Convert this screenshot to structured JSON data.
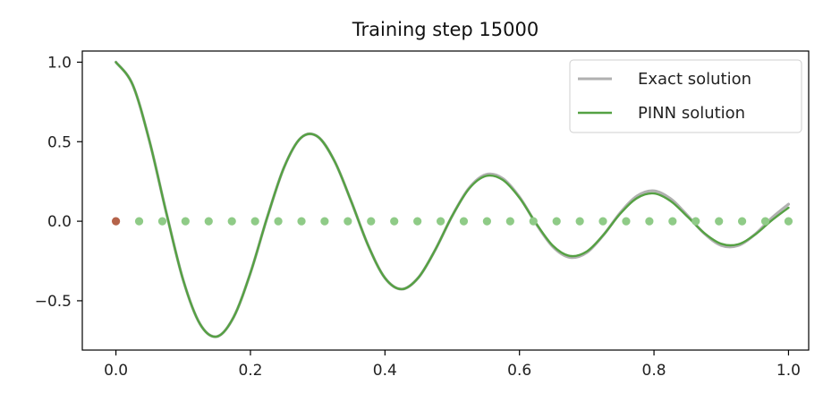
{
  "chart_data": {
    "type": "line",
    "title": "Training step 15000",
    "xlabel": "",
    "ylabel": "",
    "xlim": [
      -0.05,
      1.03
    ],
    "ylim": [
      -0.81,
      1.07
    ],
    "x_ticks": [
      0.0,
      0.2,
      0.4,
      0.6,
      0.8,
      1.0
    ],
    "x_tick_labels": [
      "0.0",
      "0.2",
      "0.4",
      "0.6",
      "0.8",
      "1.0"
    ],
    "y_ticks": [
      -0.5,
      0.0,
      0.5,
      1.0
    ],
    "y_tick_labels": [
      "−0.5",
      "0.0",
      "0.5",
      "1.0"
    ],
    "grid": false,
    "legend_position": "top-right",
    "series": [
      {
        "name": "Exact solution",
        "color": "#b0b0b0",
        "x": [
          0.0,
          0.025,
          0.05,
          0.075,
          0.1,
          0.125,
          0.15,
          0.175,
          0.2,
          0.225,
          0.25,
          0.275,
          0.3,
          0.325,
          0.35,
          0.375,
          0.4,
          0.425,
          0.45,
          0.475,
          0.5,
          0.525,
          0.55,
          0.575,
          0.6,
          0.625,
          0.65,
          0.675,
          0.7,
          0.725,
          0.75,
          0.775,
          0.8,
          0.825,
          0.85,
          0.875,
          0.9,
          0.925,
          0.95,
          0.975,
          1.0
        ],
        "y": [
          1.0,
          0.857,
          0.502,
          0.052,
          -0.37,
          -0.646,
          -0.725,
          -0.603,
          -0.325,
          0.025,
          0.339,
          0.524,
          0.532,
          0.378,
          0.123,
          -0.152,
          -0.357,
          -0.427,
          -0.353,
          -0.178,
          0.034,
          0.208,
          0.293,
          0.269,
          0.152,
          -0.018,
          -0.162,
          -0.227,
          -0.197,
          -0.086,
          0.054,
          0.159,
          0.191,
          0.14,
          0.035,
          -0.078,
          -0.152,
          -0.153,
          -0.083,
          0.02,
          0.107
        ]
      },
      {
        "name": "PINN solution",
        "color": "#55a143",
        "x": [
          0.0,
          0.025,
          0.05,
          0.075,
          0.1,
          0.125,
          0.15,
          0.175,
          0.2,
          0.225,
          0.25,
          0.275,
          0.3,
          0.325,
          0.35,
          0.375,
          0.4,
          0.425,
          0.45,
          0.475,
          0.5,
          0.525,
          0.55,
          0.575,
          0.6,
          0.625,
          0.65,
          0.675,
          0.7,
          0.725,
          0.75,
          0.775,
          0.8,
          0.825,
          0.85,
          0.875,
          0.9,
          0.925,
          0.95,
          0.975,
          1.0
        ],
        "y": [
          1.0,
          0.857,
          0.502,
          0.052,
          -0.37,
          -0.646,
          -0.725,
          -0.603,
          -0.325,
          0.025,
          0.339,
          0.524,
          0.532,
          0.378,
          0.123,
          -0.152,
          -0.357,
          -0.427,
          -0.353,
          -0.178,
          0.034,
          0.204,
          0.284,
          0.26,
          0.147,
          -0.015,
          -0.155,
          -0.218,
          -0.19,
          -0.085,
          0.048,
          0.146,
          0.175,
          0.126,
          0.028,
          -0.075,
          -0.142,
          -0.145,
          -0.085,
          0.005,
          0.085
        ]
      }
    ],
    "points": [
      {
        "color": "#8fcb87",
        "x": [
          0.0345,
          0.069,
          0.1034,
          0.1379,
          0.1724,
          0.2069,
          0.2414,
          0.2759,
          0.3103,
          0.3448,
          0.3793,
          0.4138,
          0.4483,
          0.4828,
          0.5172,
          0.5517,
          0.5862,
          0.6207,
          0.6552,
          0.6897,
          0.7241,
          0.7586,
          0.7931,
          0.8276,
          0.8621,
          0.8966,
          0.931,
          0.9655,
          1.0
        ],
        "y": [
          0,
          0,
          0,
          0,
          0,
          0,
          0,
          0,
          0,
          0,
          0,
          0,
          0,
          0,
          0,
          0,
          0,
          0,
          0,
          0,
          0,
          0,
          0,
          0,
          0,
          0,
          0,
          0,
          0
        ]
      },
      {
        "color": "#b5634a",
        "x": [
          0.0
        ],
        "y": [
          0.0
        ]
      }
    ]
  }
}
